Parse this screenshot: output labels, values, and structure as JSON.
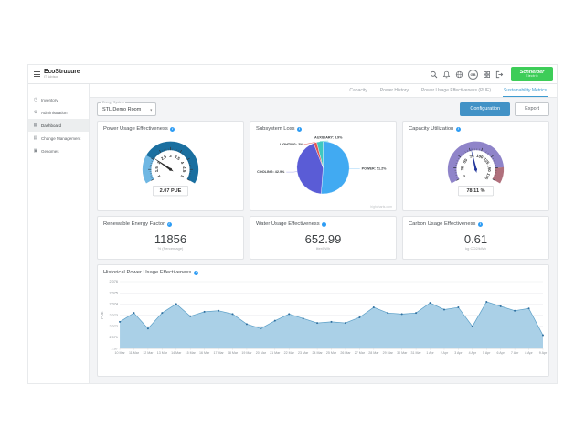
{
  "colors": {
    "brand_green": "#3dcd58",
    "accent_blue": "#4292c6",
    "tab_active_blue": "#3d9bd1",
    "info_blue": "#2d9cf4"
  },
  "topbar": {
    "logo": {
      "brand": "EcoStruxure",
      "sub": "IT Advisor"
    },
    "icons": [
      {
        "name": "search-icon"
      },
      {
        "name": "bell-icon"
      },
      {
        "name": "globe-icon"
      },
      {
        "name": "avatar",
        "label": "GB"
      },
      {
        "name": "grid-icon"
      },
      {
        "name": "logout-icon"
      }
    ],
    "vendor": {
      "line1": "Schneider",
      "line2": "Electric"
    }
  },
  "sidebar": {
    "items": [
      {
        "label": "Inventory",
        "icon": "inventory-icon",
        "active": false
      },
      {
        "label": "Administration",
        "icon": "administration-icon",
        "active": false
      },
      {
        "label": "Dashboard",
        "icon": "dashboard-icon",
        "active": true
      },
      {
        "label": "Change Management",
        "icon": "change-management-icon",
        "active": false
      },
      {
        "label": "Genomes",
        "icon": "genomes-icon",
        "active": false
      }
    ]
  },
  "tabs": [
    {
      "label": "Capacity",
      "active": false
    },
    {
      "label": "Power History",
      "active": false
    },
    {
      "label": "Power Usage Effectiveness (PUE)",
      "active": false
    },
    {
      "label": "Sustainability Metrics",
      "active": true
    }
  ],
  "controls": {
    "energy_system_label": "Energy System",
    "energy_system_value": "STL Demo Room",
    "configuration_label": "Configuration",
    "export_label": "Export"
  },
  "metrics": [
    {
      "title": "Renewable Energy Factor",
      "value": "11856",
      "unit": "% (Percentage)"
    },
    {
      "title": "Water Usage Effectiveness",
      "value": "652.99",
      "unit": "liter/kWh"
    },
    {
      "title": "Carbon Usage Effectiveness",
      "value": "0.61",
      "unit": "kg CO2/kWh"
    }
  ],
  "chart_data": [
    {
      "type": "gauge",
      "title": "Power Usage Effectiveness",
      "min": 1,
      "max": 5,
      "value": 2.07,
      "value_label": "2.07 PUE",
      "tick_step": 0.5,
      "minor_step": 0.1,
      "segments": [
        {
          "from": 1,
          "to": 2,
          "color": "#6fb7e3"
        },
        {
          "from": 2,
          "to": 5,
          "color": "#1a6fa0"
        }
      ],
      "needle_color": "#2b2b2b"
    },
    {
      "type": "pie",
      "title": "Subsystem Loss",
      "slices": [
        {
          "label": "POWER",
          "value": 51.2,
          "color": "#41aaf2"
        },
        {
          "label": "COOLING",
          "value": 42.9,
          "color": "#5a5cd6"
        },
        {
          "label": "LIGHTING",
          "value": 2.0,
          "color": "#e15656"
        },
        {
          "label": "AUXILIARY",
          "value": 3.9,
          "color": "#3ec9c0"
        }
      ],
      "watermark": "highcharts.com"
    },
    {
      "type": "gauge",
      "title": "Capacity Utilization",
      "min": 0,
      "max": 175,
      "value": 78.11,
      "value_label": "78.11 %",
      "tick_step": 25,
      "minor_step": 5,
      "segments": [
        {
          "from": 0,
          "to": 150,
          "color": "#8f84c9"
        },
        {
          "from": 150,
          "to": 175,
          "color": "#b0707c"
        }
      ],
      "needle_color": "#23379c"
    },
    {
      "type": "area",
      "title": "Historical Power Usage Effectiveness",
      "ylabel": "PUE",
      "ylim": [
        2.07,
        2.076
      ],
      "yticks": [
        "2.07",
        "2.071",
        "2.072",
        "2.073",
        "2.074",
        "2.075",
        "2.076"
      ],
      "categories": [
        "10 Mar",
        "11 Mar",
        "12 Mar",
        "13 Mar",
        "14 Mar",
        "15 Mar",
        "16 Mar",
        "17 Mar",
        "18 Mar",
        "19 Mar",
        "20 Mar",
        "21 Mar",
        "22 Mar",
        "23 Mar",
        "24 Mar",
        "25 Mar",
        "26 Mar",
        "27 Mar",
        "28 Mar",
        "29 Mar",
        "30 Mar",
        "31 Mar",
        "1 Apr",
        "2 Apr",
        "3 Apr",
        "4 Apr",
        "5 Apr",
        "6 Apr",
        "7 Apr",
        "8 Apr",
        "9 Apr"
      ],
      "values": [
        2.0724,
        2.0732,
        2.0718,
        2.0732,
        2.074,
        2.0729,
        2.0733,
        2.0734,
        2.0731,
        2.0722,
        2.0718,
        2.0725,
        2.0731,
        2.0727,
        2.0723,
        2.0724,
        2.0723,
        2.0728,
        2.0737,
        2.0732,
        2.0731,
        2.0732,
        2.0741,
        2.0735,
        2.0737,
        2.072,
        2.0742,
        2.0738,
        2.0734,
        2.0736,
        2.0712
      ],
      "colors": {
        "fill": "#a5cde6",
        "line": "#5b9fc7",
        "marker": "#2e6e9e"
      }
    }
  ]
}
